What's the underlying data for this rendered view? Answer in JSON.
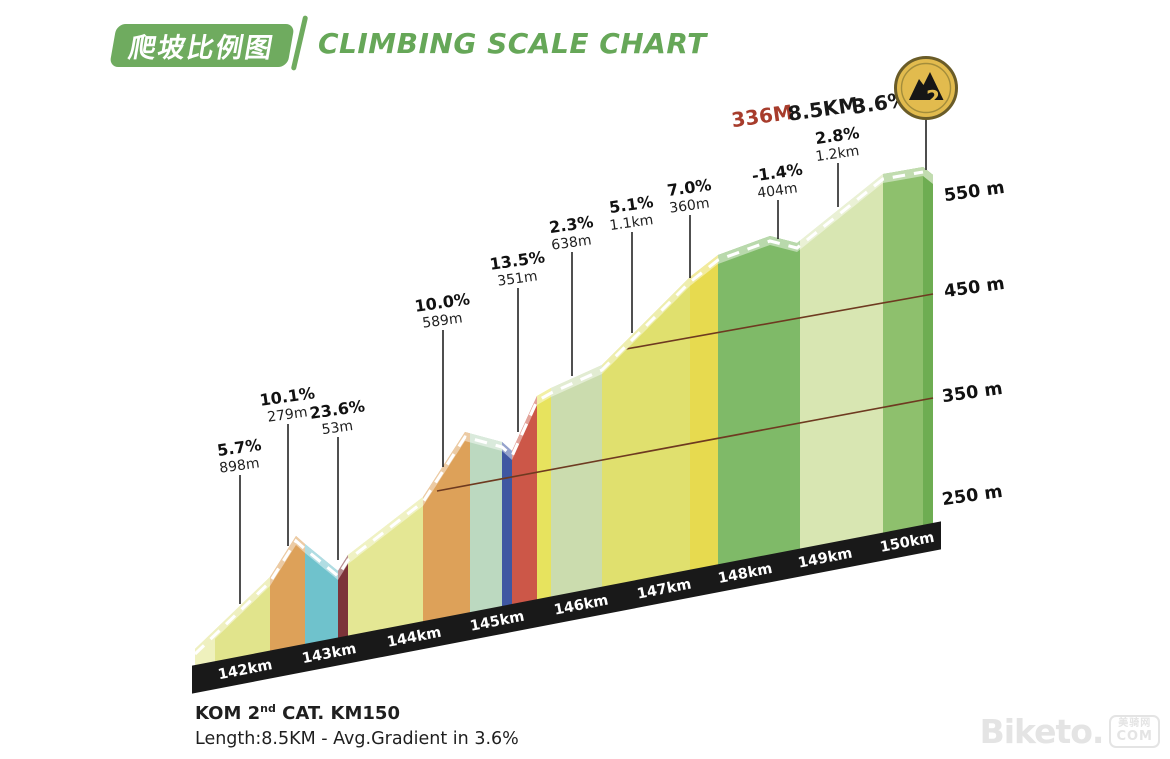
{
  "header": {
    "badge_cn": "爬坡比例图",
    "title": "CLIMBING SCALE CHART"
  },
  "summit": {
    "elevation_gain": "336M",
    "length": "8.5KM",
    "avg_gradient": "3.6%",
    "kom_category": "2"
  },
  "chart_data": {
    "type": "area",
    "title": "CLIMBING SCALE CHART",
    "x_axis": {
      "unit": "km",
      "tick_labels": [
        "142km",
        "143km",
        "144km",
        "145km",
        "146km",
        "147km",
        "148km",
        "149km",
        "150km"
      ]
    },
    "y_axis": {
      "unit": "m",
      "tick_labels": [
        "550 m",
        "450 m",
        "350 m",
        "250 m"
      ],
      "gridlines_m": [
        450,
        350
      ]
    },
    "segments": [
      {
        "grade": "5.7%",
        "length": "898m",
        "color": "#e1e48c"
      },
      {
        "grade": "10.1%",
        "length": "279m",
        "color": "#dda159"
      },
      {
        "grade": "",
        "length": "",
        "color": "#6fc2cc"
      },
      {
        "grade": "23.6%",
        "length": "53m",
        "color": "#7c3339"
      },
      {
        "grade": "",
        "length": "",
        "color": "#e4e794"
      },
      {
        "grade": "10.0%",
        "length": "589m",
        "color": "#dda159"
      },
      {
        "grade": "",
        "length": "",
        "color": "#bcd9c0"
      },
      {
        "grade": "",
        "length": "",
        "color": "#3f57a2"
      },
      {
        "grade": "13.5%",
        "length": "351m",
        "color": "#cc5748"
      },
      {
        "grade": "",
        "length": "",
        "color": "#e7e35e"
      },
      {
        "grade": "2.3%",
        "length": "638m",
        "color": "#cbdcae"
      },
      {
        "grade": "5.1%",
        "length": "1.1km",
        "color": "#e0e06e"
      },
      {
        "grade": "7.0%",
        "length": "360m",
        "color": "#e7da4f"
      },
      {
        "grade": "-1.4%",
        "length": "404m",
        "color": "#7fba68"
      },
      {
        "grade": "2.8%",
        "length": "1.2km",
        "color": "#d8e6b2"
      },
      {
        "grade": "",
        "length": "",
        "color": "#8ec06d"
      }
    ],
    "summary": {
      "length_km": 8.5,
      "avg_gradient_pct": 3.6,
      "elevation_gain_m": 336,
      "summit_km": 150
    }
  },
  "colors": {
    "accent_green": "#6fab5f",
    "summit_gain_red": "#a73c2c",
    "badge_gold": "#e2bb4e",
    "badge_ring": "#6a5c28",
    "gridline": "#6e3a20",
    "base_band": "#191919"
  },
  "footer": {
    "kom_prefix": "KOM 2",
    "kom_sup": "nd",
    "kom_suffix": " CAT. KM150",
    "length_line": "Length:8.5KM - Avg.Gradient in 3.6%"
  },
  "watermark": {
    "brand": "Biketo.",
    "cn": "美骑网",
    "com": "COM"
  }
}
